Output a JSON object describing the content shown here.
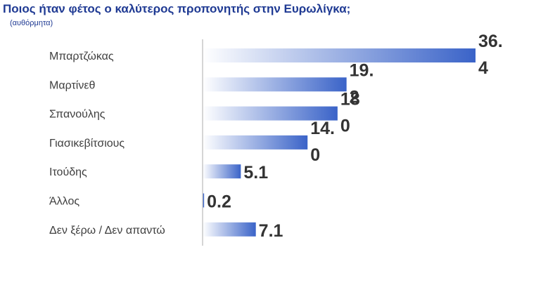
{
  "header": {
    "title": "Ποιος ήταν φέτος ο καλύτερος προπονητής στην Ευρωλίγκα;",
    "subtitle": "(αυθόρμητα)"
  },
  "colors": {
    "title": "#1f3a93",
    "bar_start": "#ffffff",
    "bar_end": "#3a63c8",
    "axis": "#c7c7c7",
    "category_text": "#404040",
    "value_text": "#333333"
  },
  "chart_data": {
    "type": "bar",
    "orientation": "horizontal",
    "categories": [
      "Μπαρτζώκας",
      "Μαρτίνεθ",
      "Σπανούλης",
      "Γιασικεβίτσιους",
      "Ιτούδης",
      "Άλλος",
      "Δεν ξέρω / Δεν απαντώ"
    ],
    "values": [
      36.4,
      19.2,
      18.0,
      14.0,
      5.1,
      0.2,
      7.1
    ],
    "value_labels": [
      [
        "36.",
        "4"
      ],
      [
        "19.",
        "2"
      ],
      [
        "18",
        "0"
      ],
      [
        "14.",
        "0"
      ],
      [
        "5.1"
      ],
      [
        "0.2"
      ],
      [
        "7.1"
      ]
    ],
    "title": "Ποιος ήταν φέτος ο καλύτερος προπονητής στην Ευρωλίγκα;",
    "subtitle": "(αυθόρμητα)",
    "xlim": [
      0,
      36.4
    ],
    "grid": false,
    "legend": "none"
  }
}
